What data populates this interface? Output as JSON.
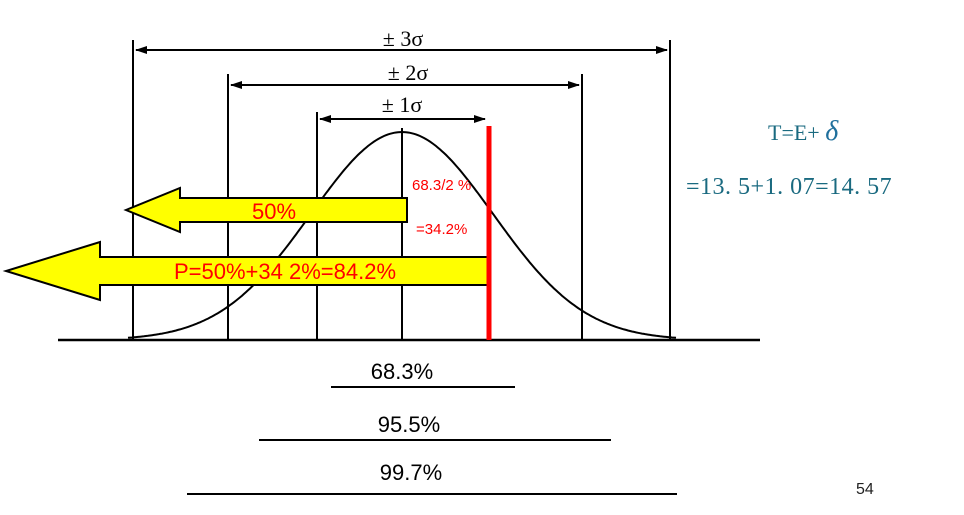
{
  "diagram": {
    "sigma_labels": {
      "three": "± 3σ",
      "two": "± 2σ",
      "one": "± 1σ"
    },
    "arrow_labels": {
      "half": "50%",
      "probability": "P=50%+34 2%=84.2%"
    },
    "red_labels": {
      "half_of_one_sigma": "68.3/2 %",
      "result": "=34.2%"
    },
    "coverage": [
      "68.3%",
      "95.5%",
      "99.7%"
    ],
    "colors": {
      "arrow_fill": "#ffff00",
      "highlight": "#ff0000",
      "formula": "#1a6a80"
    }
  },
  "formula": {
    "line1_prefix": "T=E+ ",
    "line1_symbol": "δ",
    "line2": "=13. 5+1. 07=14. 57"
  },
  "page_number": "54"
}
